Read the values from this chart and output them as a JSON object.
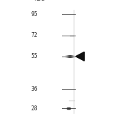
{
  "background_color": "#ffffff",
  "ladder_kda": [
    95,
    72,
    55,
    36,
    28
  ],
  "arrow_kda": 55,
  "band_kda": 55,
  "band2_kda": 28,
  "fig_width": 1.77,
  "fig_height": 1.69,
  "dpi": 100,
  "kda_ref_min": 28,
  "kda_ref_max": 95,
  "label_color": "#333333",
  "tick_color": "#555555",
  "lane_color": "#d8d8d8",
  "band_color_dark": "#2a2a2a",
  "band_color_faint": "#aaaaaa",
  "arrow_color": "#111111"
}
